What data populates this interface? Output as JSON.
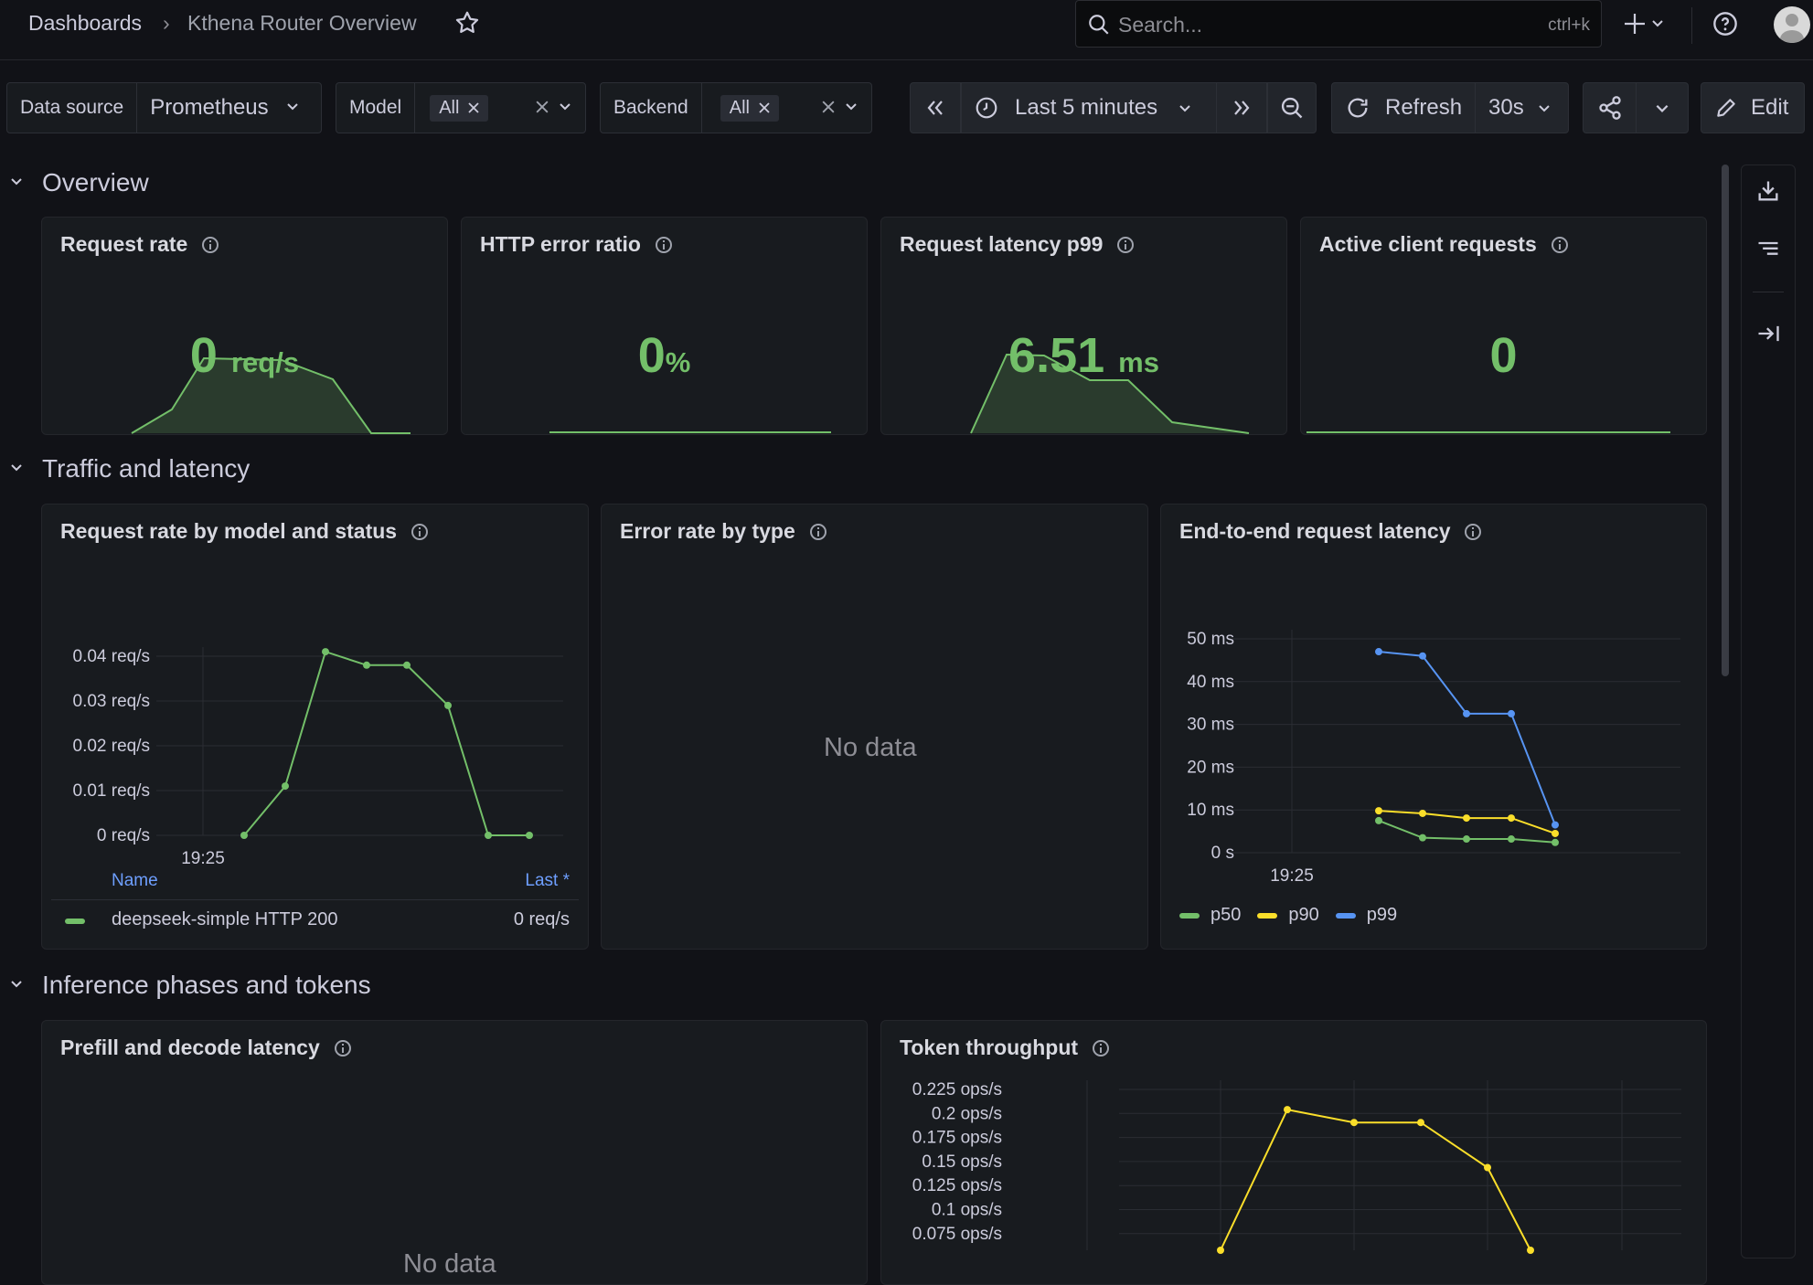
{
  "breadcrumb": {
    "root": "Dashboards",
    "separator": "›",
    "current": "Kthena Router Overview"
  },
  "search": {
    "placeholder": "Search...",
    "shortcut": "ctrl+k"
  },
  "variables": {
    "datasource": {
      "label": "Data source",
      "value": "Prometheus"
    },
    "model": {
      "label": "Model",
      "value": "All"
    },
    "backend": {
      "label": "Backend",
      "value": "All"
    }
  },
  "time": {
    "range": "Last 5 minutes",
    "refresh_label": "Refresh",
    "interval": "30s"
  },
  "toolbar": {
    "edit_label": "Edit"
  },
  "rows": {
    "overview": "Overview",
    "traffic": "Traffic and latency",
    "inference": "Inference phases and tokens"
  },
  "stats": [
    {
      "title": "Request rate",
      "value": "0",
      "unit": "req/s"
    },
    {
      "title": "HTTP error ratio",
      "value": "0",
      "unit": "%"
    },
    {
      "title": "Request latency p99",
      "value": "6.51",
      "unit": "ms"
    },
    {
      "title": "Active client requests",
      "value": "0",
      "unit": ""
    }
  ],
  "panels": {
    "req_by_model": {
      "title": "Request rate by model and status",
      "legend_name_header": "Name",
      "legend_last_header": "Last *",
      "legend_row_name": "deepseek-simple HTTP 200",
      "legend_row_value": "0 req/s"
    },
    "error_rate": {
      "title": "Error rate by type",
      "no_data": "No data"
    },
    "e2e_latency": {
      "title": "End-to-end request latency"
    },
    "prefill_decode": {
      "title": "Prefill and decode latency",
      "no_data": "No data"
    },
    "token_throughput": {
      "title": "Token throughput"
    }
  },
  "colors": {
    "green": "#73bf69",
    "yellow": "#fade2a",
    "blue": "#5794f2",
    "bg": "#111217",
    "panel": "#181b1f"
  },
  "icons": [
    "star-icon",
    "search-icon",
    "plus-icon",
    "help-icon",
    "avatar-icon",
    "clock-icon",
    "zoom-out-icon",
    "refresh-icon",
    "share-icon",
    "pencil-icon",
    "download-icon",
    "outline-icon",
    "collapse-icon",
    "info-icon",
    "chevron-down-icon",
    "close-icon"
  ],
  "chart_data": [
    {
      "type": "line",
      "title": "Request rate by model and status",
      "x_tick_label": "19:25",
      "y_ticks": [
        "0.04 req/s",
        "0.03 req/s",
        "0.02 req/s",
        "0.01 req/s",
        "0 req/s"
      ],
      "ylim": [
        0,
        0.04
      ],
      "series": [
        {
          "name": "deepseek-simple HTTP 200",
          "color": "#73bf69",
          "values": [
            0,
            0.011,
            0.041,
            0.038,
            0.038,
            0.029,
            0,
            0
          ]
        }
      ]
    },
    {
      "type": "line",
      "title": "End-to-end request latency",
      "x_tick_label": "19:25",
      "y_ticks": [
        "50 ms",
        "40 ms",
        "30 ms",
        "20 ms",
        "10 ms",
        "0 s"
      ],
      "ylim": [
        0,
        50
      ],
      "series": [
        {
          "name": "p50",
          "color": "#73bf69",
          "values": [
            7.5,
            3.5,
            3.2,
            3.2,
            2.4
          ]
        },
        {
          "name": "p90",
          "color": "#fade2a",
          "values": [
            9.8,
            9.2,
            8.1,
            8.1,
            4.5
          ]
        },
        {
          "name": "p99",
          "color": "#5794f2",
          "values": [
            47,
            46,
            32.5,
            32.5,
            6.5
          ]
        }
      ]
    },
    {
      "type": "line",
      "title": "Token throughput",
      "y_ticks": [
        "0.225 ops/s",
        "0.2 ops/s",
        "0.175 ops/s",
        "0.15 ops/s",
        "0.125 ops/s",
        "0.1 ops/s",
        "0.075 ops/s"
      ],
      "ylim": [
        0.05,
        0.225
      ],
      "series": [
        {
          "name": "",
          "color": "#fade2a",
          "values": [
            0.05,
            0.203,
            0.189,
            0.189,
            0.14,
            0.05
          ]
        }
      ]
    }
  ]
}
